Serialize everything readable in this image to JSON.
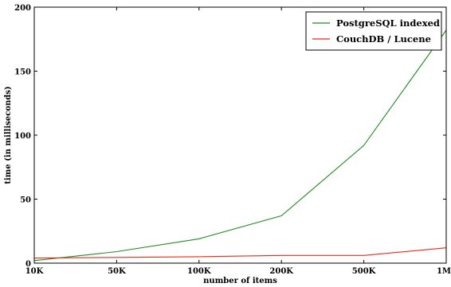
{
  "chart_data": {
    "type": "line",
    "title": "",
    "xlabel": "number of items",
    "ylabel": "time (in milliseconds)",
    "categories": [
      "10K",
      "50K",
      "100K",
      "200K",
      "500K",
      "1M"
    ],
    "ylim": [
      0,
      200
    ],
    "yticks": [
      0,
      50,
      100,
      150,
      200
    ],
    "grid": false,
    "legend_position": "top-right",
    "series": [
      {
        "name": "PostgreSQL indexed",
        "color": "#228b22",
        "values": [
          2,
          9,
          19,
          37,
          92,
          182
        ]
      },
      {
        "name": "CouchDB / Lucene",
        "color": "#e8291c",
        "values": [
          4,
          4.5,
          5,
          6,
          6,
          12
        ]
      }
    ]
  }
}
